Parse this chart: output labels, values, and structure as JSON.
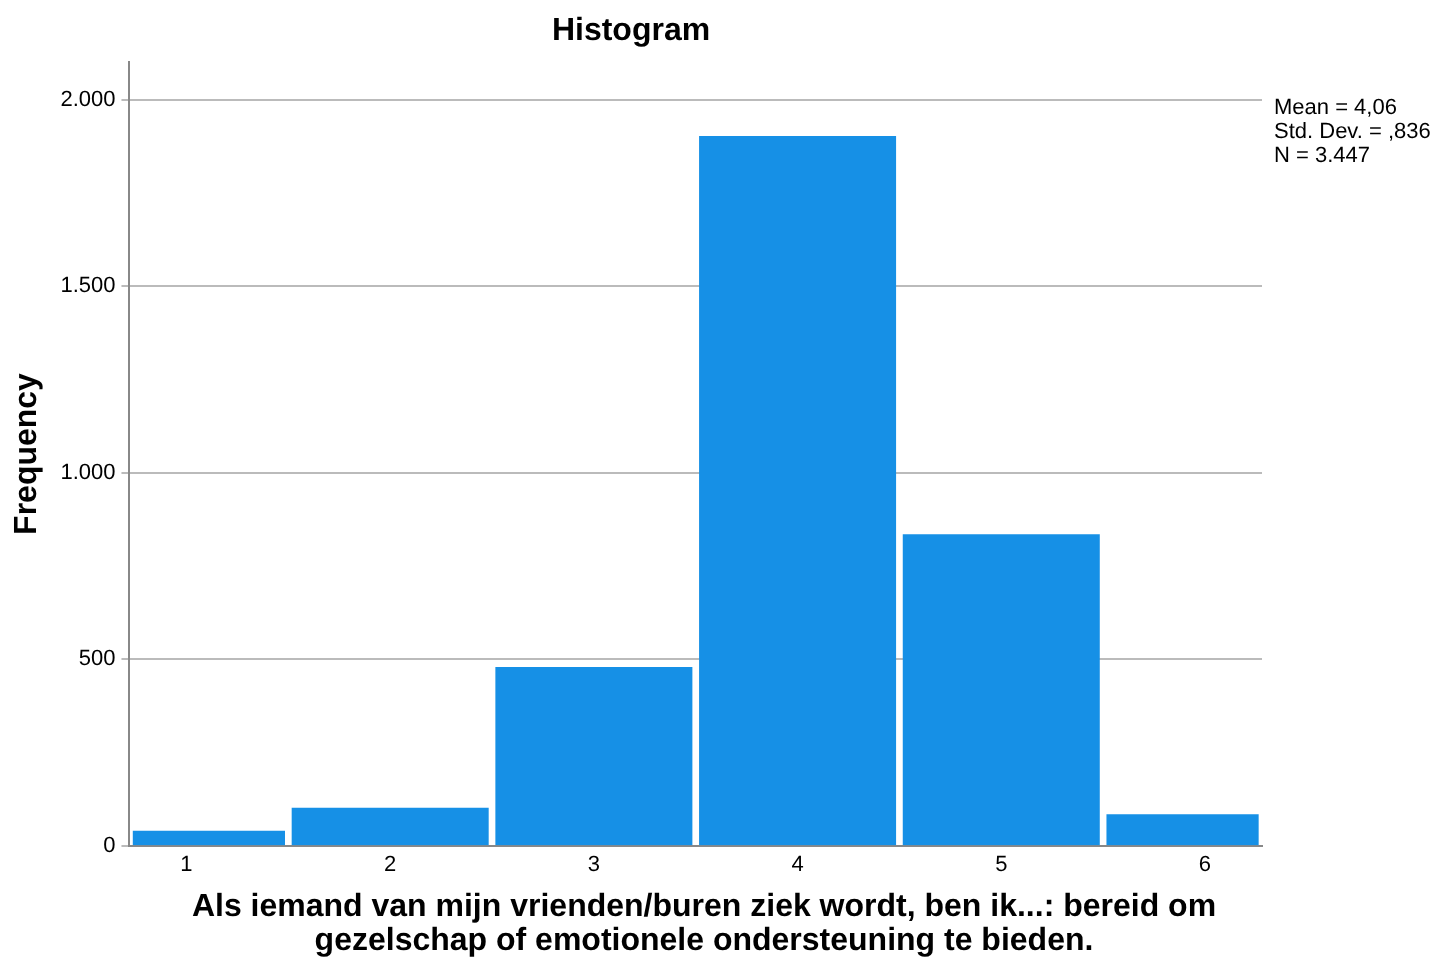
{
  "chart_data": {
    "type": "histogram",
    "title": "Histogram",
    "xlabel": "Als iemand van mijn vrienden/buren ziek wordt, ben ik...: bereid om gezelschap of emotionele ondersteuning te bieden.",
    "ylabel": "Frequency",
    "bins": [
      0.72,
      1.5,
      2.5,
      3.5,
      4.5,
      5.5,
      6.28
    ],
    "values": [
      38,
      100,
      477,
      1901,
      833,
      82
    ],
    "color": "#1690e6",
    "xlim": [
      0.72,
      6.28
    ],
    "xticks": [
      1,
      2,
      3,
      4,
      5,
      6
    ],
    "ylim": [
      0,
      2100
    ],
    "yticks": [
      0,
      500,
      {
        "value": 1000,
        "label": "1.000"
      },
      {
        "value": 1500,
        "label": "1.500"
      },
      {
        "value": 2000,
        "label": "2.000"
      }
    ],
    "grid": "y",
    "legend": false,
    "annotations": [
      "Mean = 4,06",
      "Std. Dev. = ,836",
      "N = 3.447"
    ]
  }
}
